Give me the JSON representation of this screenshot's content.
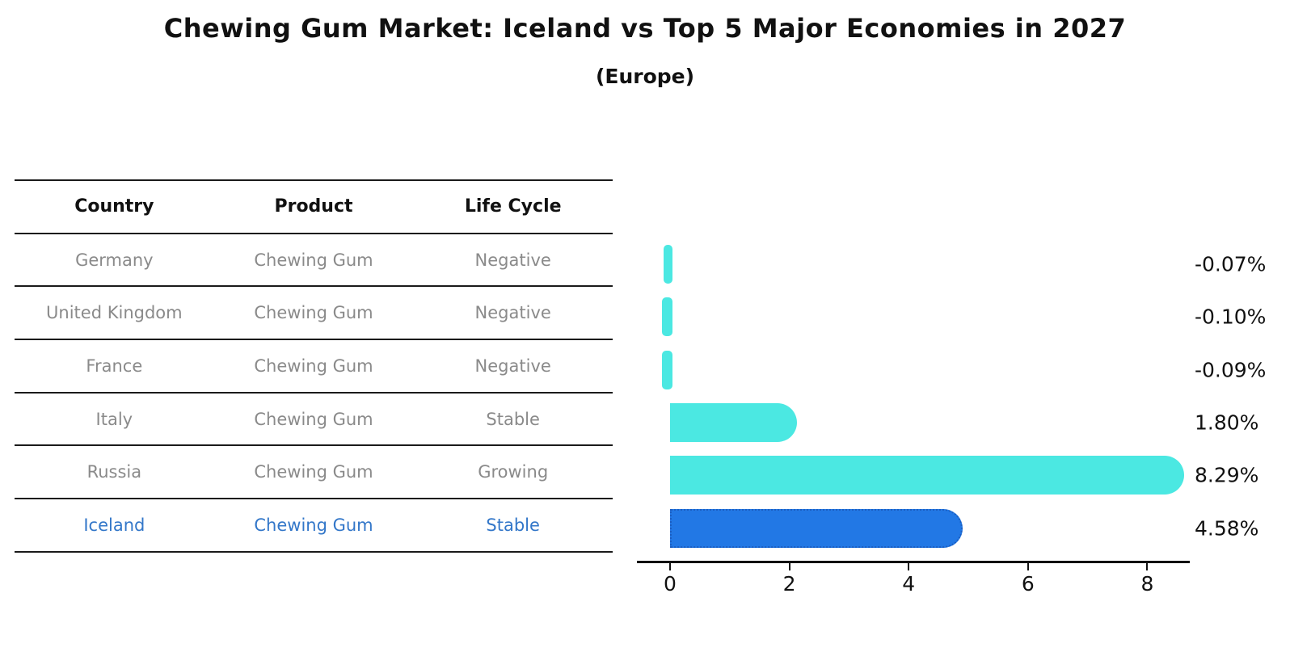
{
  "header": {
    "title": "Chewing Gum Market: Iceland vs Top 5 Major Economies in 2027",
    "subtitle": "(Europe)"
  },
  "table": {
    "headers": [
      "Country",
      "Product",
      "Life Cycle"
    ],
    "rows": [
      {
        "country": "Germany",
        "product": "Chewing Gum",
        "life_cycle": "Negative"
      },
      {
        "country": "United Kingdom",
        "product": "Chewing Gum",
        "life_cycle": "Negative"
      },
      {
        "country": "France",
        "product": "Chewing Gum",
        "life_cycle": "Negative"
      },
      {
        "country": "Italy",
        "product": "Chewing Gum",
        "life_cycle": "Stable"
      },
      {
        "country": "Russia",
        "product": "Chewing Gum",
        "life_cycle": "Growing"
      },
      {
        "country": "Iceland",
        "product": "Chewing Gum",
        "life_cycle": "Stable"
      }
    ],
    "highlight_row": "Iceland"
  },
  "chart_data": {
    "type": "bar",
    "orientation": "horizontal",
    "title": "Chewing Gum Market: Iceland vs Top 5 Major Economies in 2027 (Europe)",
    "categories": [
      "Germany",
      "United Kingdom",
      "France",
      "Italy",
      "Russia",
      "Iceland"
    ],
    "values": [
      -0.07,
      -0.1,
      -0.09,
      1.8,
      8.29,
      4.58
    ],
    "value_labels": [
      "-0.07%",
      "-0.10%",
      "-0.09%",
      "1.80%",
      "8.29%",
      "4.58%"
    ],
    "x_ticks": [
      0,
      2,
      4,
      6,
      8
    ],
    "xlim": [
      -0.55,
      8.7
    ],
    "grid": false,
    "legend": false,
    "bar_color": "#4be8e2",
    "highlight_index": 5,
    "highlight_color": "#2278e5",
    "highlight_border_color": "#1c5fc2",
    "highlight_border_style": "dotted"
  },
  "colors": {
    "text_primary": "#111111",
    "text_muted": "#8a8a8a",
    "highlight_text": "#3377c9",
    "axis": "#111111",
    "background": "#ffffff"
  }
}
